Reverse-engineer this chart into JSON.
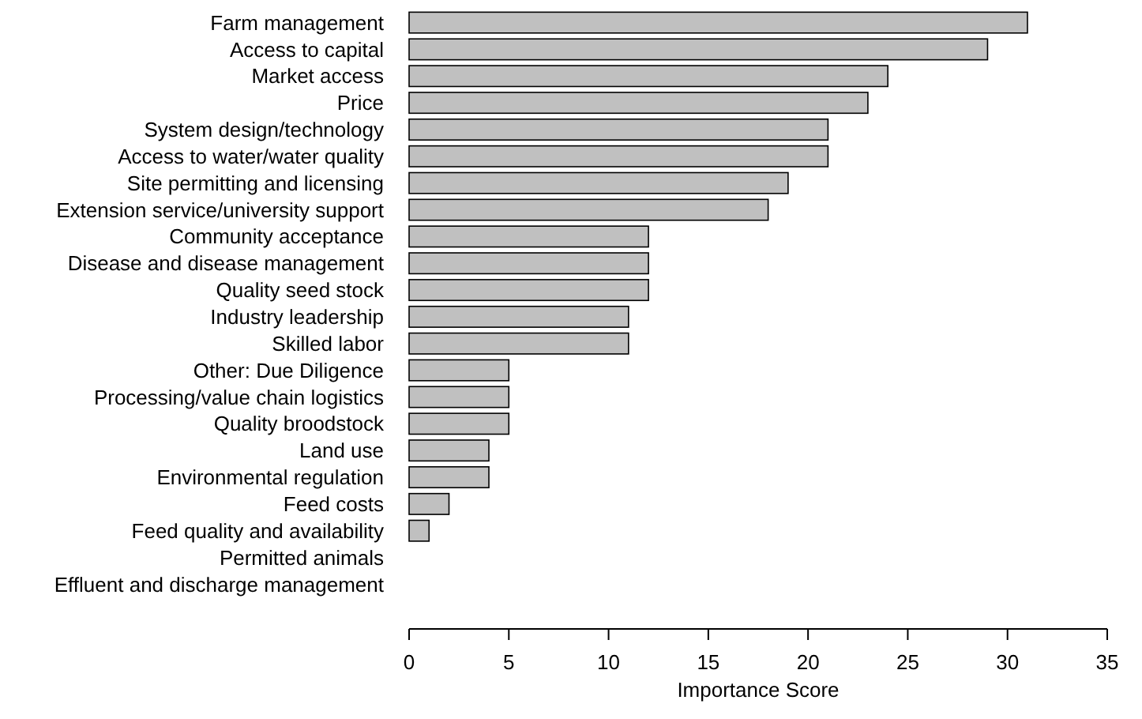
{
  "chart_data": {
    "type": "bar",
    "orientation": "horizontal",
    "xlabel": "Importance Score",
    "categories": [
      "Farm management",
      "Access to capital",
      "Market access",
      "Price",
      "System design/technology",
      "Access to water/water quality",
      "Site permitting and licensing",
      "Extension service/university support",
      "Community acceptance",
      "Disease and disease management",
      "Quality seed stock",
      "Industry leadership",
      "Skilled labor",
      "Other: Due Diligence",
      "Processing/value chain logistics",
      "Quality broodstock",
      "Land use",
      "Environmental regulation",
      "Feed costs",
      "Feed quality and availability",
      "Permitted animals",
      "Effluent and discharge management"
    ],
    "values": [
      31,
      29,
      24,
      23,
      21,
      21,
      19,
      18,
      12,
      12,
      12,
      11,
      11,
      5,
      5,
      5,
      4,
      4,
      2,
      1,
      0,
      0
    ],
    "color": "#c0c0c0",
    "xlim": [
      0,
      35
    ],
    "xticks": [
      0,
      5,
      10,
      15,
      20,
      25,
      30,
      35
    ],
    "grid": false
  }
}
